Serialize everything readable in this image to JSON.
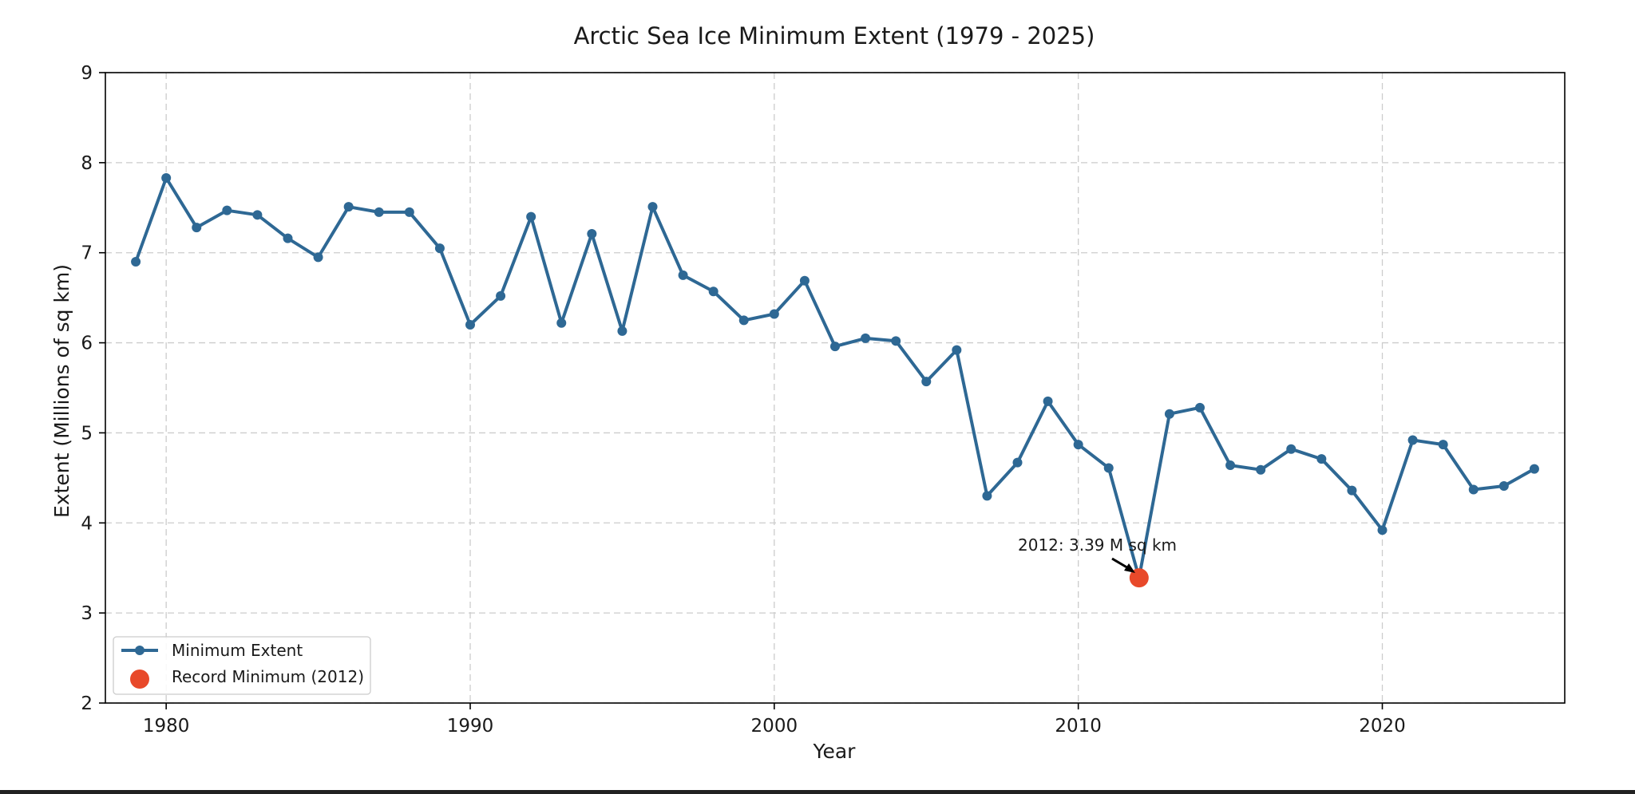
{
  "chart_data": {
    "type": "line",
    "title": "Arctic Sea Ice Minimum Extent (1979 - 2025)",
    "xlabel": "Year",
    "ylabel": "Extent (Millions of sq km)",
    "xlim": [
      1978,
      2026
    ],
    "ylim": [
      2,
      9
    ],
    "xticks": [
      1980,
      1990,
      2000,
      2010,
      2020
    ],
    "yticks": [
      2,
      3,
      4,
      5,
      6,
      7,
      8,
      9
    ],
    "grid": true,
    "legend_position": "lower-left",
    "series": [
      {
        "name": "Minimum Extent",
        "color": "#2e6894",
        "x": [
          1979,
          1980,
          1981,
          1982,
          1983,
          1984,
          1985,
          1986,
          1987,
          1988,
          1989,
          1990,
          1991,
          1992,
          1993,
          1994,
          1995,
          1996,
          1997,
          1998,
          1999,
          2000,
          2001,
          2002,
          2003,
          2004,
          2005,
          2006,
          2007,
          2008,
          2009,
          2010,
          2011,
          2012,
          2013,
          2014,
          2015,
          2016,
          2017,
          2018,
          2019,
          2020,
          2021,
          2022,
          2023,
          2024,
          2025
        ],
        "values": [
          6.9,
          7.83,
          7.28,
          7.47,
          7.42,
          7.16,
          6.95,
          7.51,
          7.45,
          7.45,
          7.05,
          6.2,
          6.52,
          7.4,
          6.22,
          7.21,
          6.13,
          7.51,
          6.75,
          6.57,
          6.25,
          6.32,
          6.69,
          5.96,
          6.05,
          6.02,
          5.57,
          5.92,
          4.3,
          4.67,
          5.35,
          4.87,
          4.61,
          3.39,
          5.21,
          5.28,
          4.64,
          4.59,
          4.82,
          4.71,
          4.36,
          3.92,
          4.92,
          4.87,
          4.37,
          4.41,
          4.6
        ]
      },
      {
        "name": "Record Minimum (2012)",
        "color": "#e8492a",
        "x": [
          2012
        ],
        "values": [
          3.39
        ]
      }
    ],
    "annotations": [
      {
        "text": "2012: 3.39 M sq km",
        "x": 2012,
        "y": 3.39
      }
    ]
  }
}
